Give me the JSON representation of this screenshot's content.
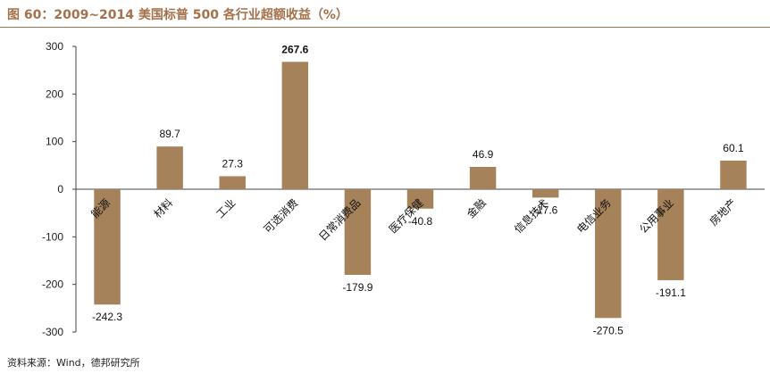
{
  "header": {
    "title": "图 60：2009~2014 美国标普 500 各行业超额收益（%）"
  },
  "footer": {
    "source": "资料来源：Wind，德邦研究所"
  },
  "chart_data": {
    "type": "bar",
    "categories": [
      "能源",
      "材料",
      "工业",
      "可选消费",
      "日常消费品",
      "医疗保健",
      "金融",
      "信息技术",
      "电信业务",
      "公用事业",
      "房地产"
    ],
    "values": [
      -242.3,
      89.7,
      27.3,
      267.6,
      -179.9,
      -40.8,
      46.9,
      -17.6,
      -270.5,
      -191.1,
      60.1
    ],
    "value_labels": [
      "-242.3",
      "89.7",
      "27.3",
      "267.6",
      "-179.9",
      "-40.8",
      "46.9",
      "-17.6",
      "-270.5",
      "-191.1",
      "60.1"
    ],
    "title": "",
    "xlabel": "",
    "ylabel": "",
    "ylim": [
      -300,
      300
    ],
    "yticks": [
      300,
      200,
      100,
      0,
      -100,
      -200,
      -300
    ],
    "bar_color": "#a5825a",
    "bold_label_index": 3,
    "grid": false,
    "legend": "none"
  }
}
